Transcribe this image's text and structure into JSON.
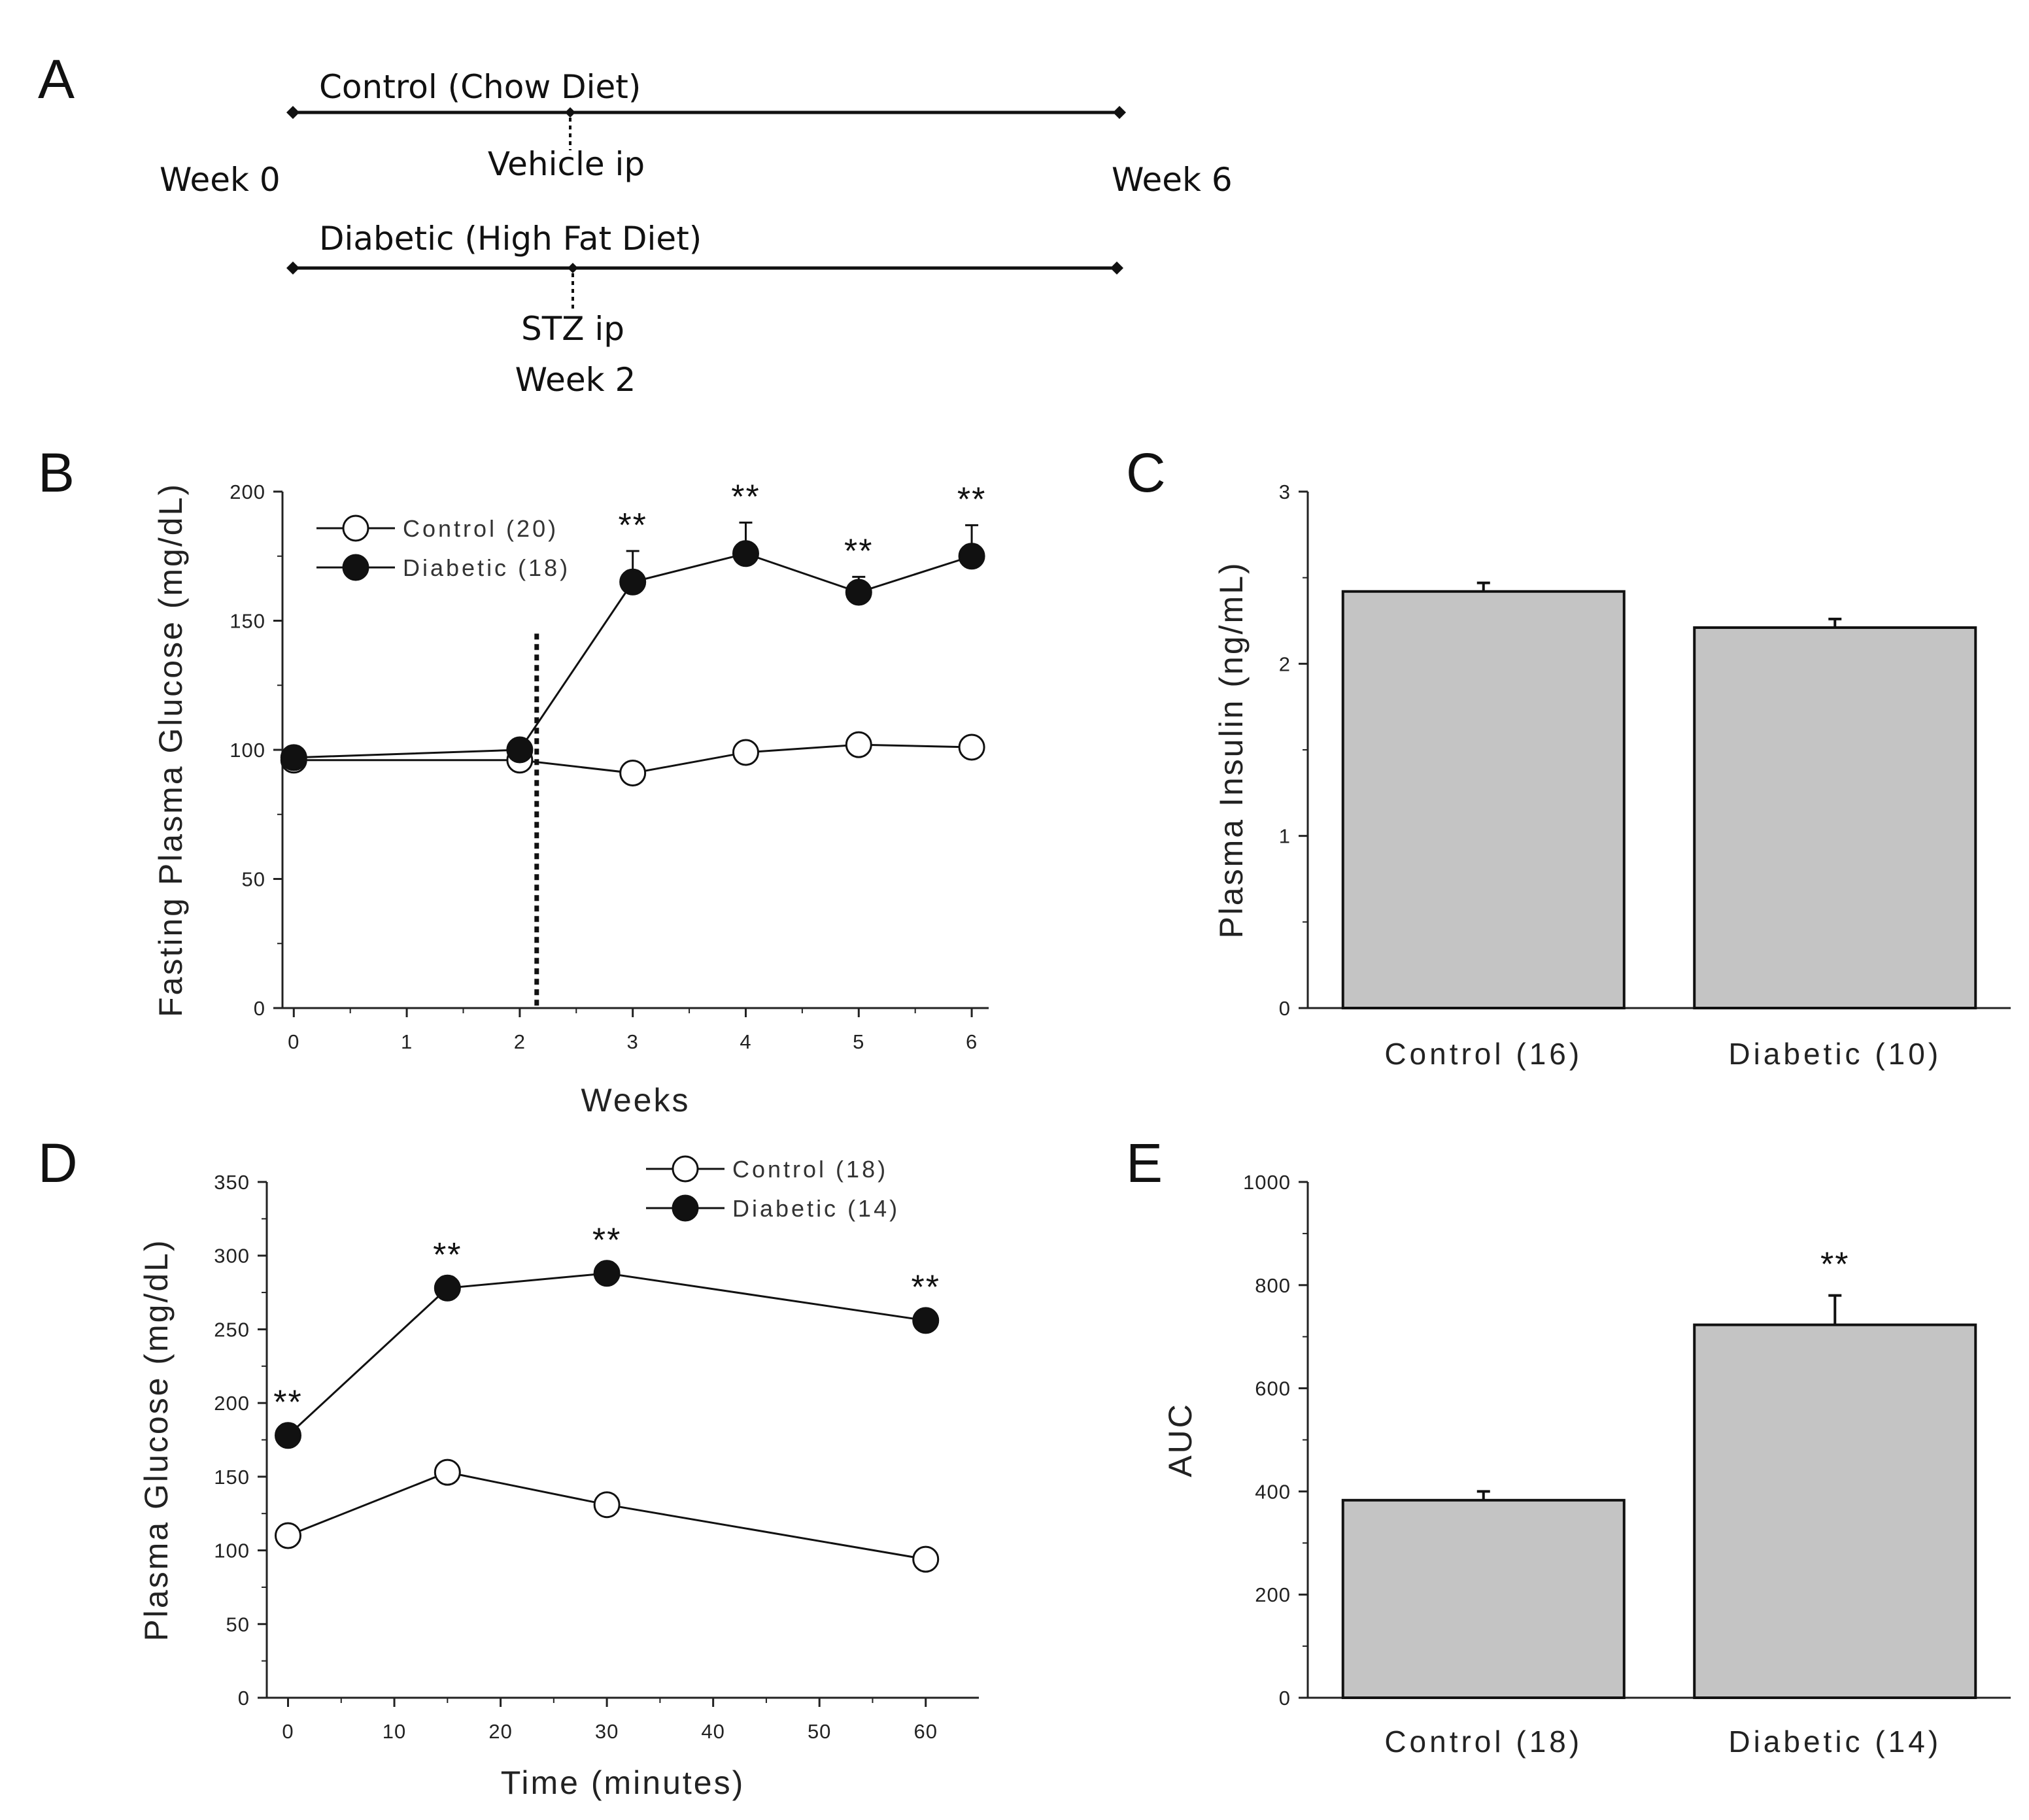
{
  "panel_labels": {
    "a": "A",
    "b": "B",
    "c": "C",
    "d": "D",
    "e": "E"
  },
  "timeline": {
    "control_label": "Control (Chow Diet)",
    "vehicle_label": "Vehicle ip",
    "week0_label": "Week 0",
    "week6_label": "Week 6",
    "diabetic_label": "Diabetic (High Fat Diet)",
    "stz_label": "STZ ip",
    "week2_label": "Week 2"
  },
  "chart_data": [
    {
      "id": "B",
      "type": "line",
      "xlabel": "Weeks",
      "ylabel": "Fasting Plasma Glucose (mg/dL)",
      "xlim": [
        -0.1,
        6.15
      ],
      "ylim": [
        0,
        200
      ],
      "x_ticks": [
        0,
        1,
        2,
        3,
        4,
        5,
        6
      ],
      "y_ticks": [
        0,
        50,
        100,
        150,
        200
      ],
      "vline_x": 2.15,
      "legend": [
        "Control (20)",
        "Diabetic (18)"
      ],
      "legend_position": "top-left",
      "significance_label": "**",
      "significant_x": [
        3,
        4,
        5,
        6
      ],
      "series": [
        {
          "name": "Control (20)",
          "marker": "open",
          "x": [
            0,
            2,
            3,
            4,
            5,
            6
          ],
          "values": [
            96,
            96,
            91,
            99,
            102,
            101
          ],
          "errors": [
            2,
            2,
            2,
            2,
            2,
            2
          ]
        },
        {
          "name": "Diabetic (18)",
          "marker": "filled",
          "x": [
            0,
            2,
            3,
            4,
            5,
            6
          ],
          "values": [
            97,
            100,
            165,
            176,
            161,
            175
          ],
          "errors": [
            3,
            3,
            12,
            12,
            6,
            12
          ]
        }
      ]
    },
    {
      "id": "C",
      "type": "bar",
      "ylabel": "Plasma Insulin (ng/mL)",
      "ylim": [
        0,
        3
      ],
      "y_ticks": [
        0,
        1,
        2,
        3
      ],
      "categories": [
        "Control (16)",
        "Diabetic (10)"
      ],
      "values": [
        2.42,
        2.21
      ],
      "errors": [
        0.05,
        0.05
      ],
      "significance_label": "",
      "significant": [
        false,
        false
      ]
    },
    {
      "id": "D",
      "type": "line",
      "xlabel": "Time (minutes)",
      "ylabel": "Plasma Glucose (mg/dL)",
      "xlim": [
        -2,
        65
      ],
      "ylim": [
        0,
        350
      ],
      "x_ticks": [
        0,
        10,
        20,
        30,
        40,
        50,
        60
      ],
      "y_ticks": [
        0,
        50,
        100,
        150,
        200,
        250,
        300,
        350
      ],
      "legend": [
        "Control (18)",
        "Diabetic (14)"
      ],
      "legend_position": "top-right",
      "significance_label": "**",
      "significant_x": [
        0,
        15,
        30,
        60
      ],
      "series": [
        {
          "name": "Control (18)",
          "marker": "open",
          "x": [
            0,
            15,
            30,
            60
          ],
          "values": [
            110,
            153,
            131,
            94
          ],
          "errors": [
            4,
            5,
            4,
            4
          ]
        },
        {
          "name": "Diabetic (14)",
          "marker": "filled",
          "x": [
            0,
            15,
            30,
            60
          ],
          "values": [
            178,
            278,
            288,
            256
          ],
          "errors": [
            5,
            5,
            5,
            5
          ]
        }
      ]
    },
    {
      "id": "E",
      "type": "bar",
      "ylabel": "AUC",
      "ylim": [
        0,
        1000
      ],
      "y_ticks": [
        0,
        200,
        400,
        600,
        800,
        1000
      ],
      "categories": [
        "Control (18)",
        "Diabetic (14)"
      ],
      "values": [
        383,
        723
      ],
      "errors": [
        17,
        57
      ],
      "significance_label": "**",
      "significant": [
        false,
        true
      ]
    }
  ],
  "colors": {
    "bar_fill": "#c4c4c4",
    "ink": "#111111",
    "axis": "#222222",
    "open_marker_fill": "#ffffff"
  }
}
